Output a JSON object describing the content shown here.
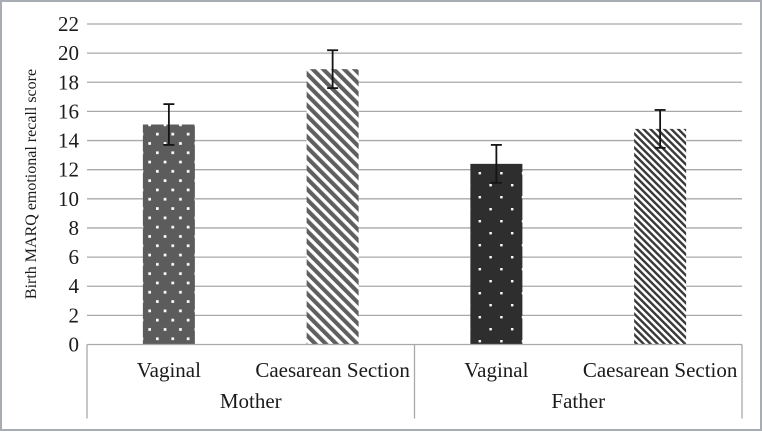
{
  "chart_data": {
    "type": "bar",
    "title": "",
    "xlabel": "",
    "ylabel": "Birth MARQ emotional recall score",
    "ylim": [
      0,
      22
    ],
    "ytick_step": 2,
    "grid": true,
    "legend_position": "none",
    "error_bars": true,
    "groups": [
      {
        "label": "Mother",
        "bars": [
          {
            "category": "Vaginal",
            "value": 15.1,
            "error": 1.4,
            "pattern": "dots-medium",
            "fill": "#5c5c5c"
          },
          {
            "category": "Caesarean Section",
            "value": 18.9,
            "error": 1.3,
            "pattern": "stripes-thick",
            "fill": "#5f5f5f"
          }
        ]
      },
      {
        "label": "Father",
        "bars": [
          {
            "category": "Vaginal",
            "value": 12.4,
            "error": 1.3,
            "pattern": "dots-sparse-dark",
            "fill": "#2e2e2e"
          },
          {
            "category": "Caesarean Section",
            "value": 14.8,
            "error": 1.3,
            "pattern": "stripes-thin-dark",
            "fill": "#383838"
          }
        ]
      }
    ],
    "colors": {
      "grid": "#a9a9a9",
      "axis_box": "#a9a9a9",
      "error_bar": "#141414",
      "text": "#1b1b1b",
      "background": "#ffffff",
      "figure_border": "#a7adb3",
      "pattern_dot": "#ffffff",
      "pattern_stripe_background": "#ffffff"
    }
  }
}
